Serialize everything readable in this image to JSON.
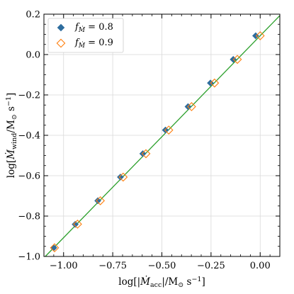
{
  "chart_data": {
    "type": "scatter",
    "xlabel_main": "log[|",
    "xlabel_var": "Ṁ",
    "xlabel_sub": "acc",
    "xlabel_rest": "|/M",
    "xlabel_sun": "⊙",
    "xlabel_unit": " s",
    "xlabel_exp": "−1",
    "xlabel_close": "]",
    "ylabel_main": "log[",
    "ylabel_var": "Ṁ",
    "ylabel_sub": "wind",
    "ylabel_rest": "/M",
    "ylabel_sun": "⊙",
    "ylabel_unit": " s",
    "ylabel_exp": "−1",
    "ylabel_close": "]",
    "xlim": [
      -1.1,
      0.1
    ],
    "ylim": [
      -1.0,
      0.2
    ],
    "xticks": [
      -1.0,
      -0.75,
      -0.5,
      -0.25,
      0.0
    ],
    "xtick_labels": [
      "−1.00",
      "−0.75",
      "−0.50",
      "−0.25",
      "0.00"
    ],
    "yticks": [
      -1.0,
      -0.8,
      -0.6,
      -0.4,
      -0.2,
      0.0,
      0.2
    ],
    "ytick_labels": [
      "−1.0",
      "−0.8",
      "−0.6",
      "−0.4",
      "−0.2",
      "0.0",
      "0.2"
    ],
    "grid": true,
    "legend_position": "top-left",
    "series": [
      {
        "name": "f_Ṁ = 0.8",
        "legend_f": "f",
        "legend_sub": "Ṁ",
        "legend_val": " = 0.8",
        "marker": "diamond-filled",
        "color": "#2e6d9e",
        "x": [
          -1.05,
          -0.941,
          -0.826,
          -0.711,
          -0.597,
          -0.482,
          -0.367,
          -0.253,
          -0.137,
          -0.023
        ],
        "y": [
          -0.957,
          -0.841,
          -0.724,
          -0.607,
          -0.491,
          -0.374,
          -0.258,
          -0.141,
          -0.024,
          0.093
        ]
      },
      {
        "name": "f_Ṁ = 0.9",
        "legend_f": "f",
        "legend_sub": "Ṁ",
        "legend_val": " = 0.9",
        "marker": "diamond-open",
        "color": "#ff7f0e",
        "x": [
          -1.046,
          -0.929,
          -0.813,
          -0.697,
          -0.581,
          -0.465,
          -0.349,
          -0.232,
          -0.116,
          0.0
        ],
        "y": [
          -0.957,
          -0.84,
          -0.724,
          -0.607,
          -0.491,
          -0.374,
          -0.258,
          -0.141,
          -0.024,
          0.093
        ]
      }
    ],
    "fit_line": {
      "color": "#2ca02c",
      "slope": 1.0,
      "intercept": 0.093
    }
  }
}
